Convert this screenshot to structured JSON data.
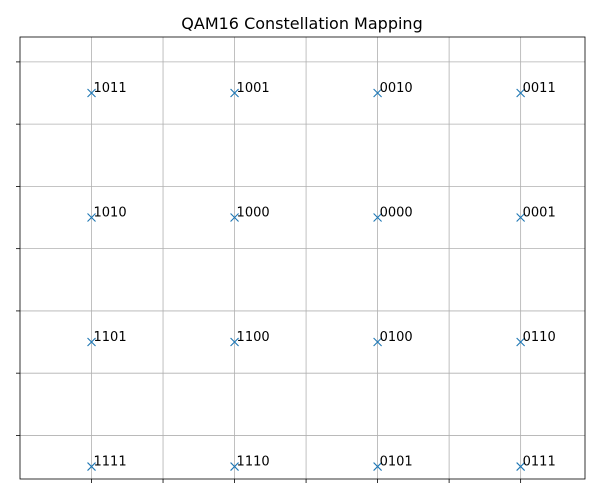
{
  "chart_data": {
    "type": "scatter",
    "title": "QAM16 Constellation Mapping",
    "xlabel": "",
    "ylabel": "",
    "marker": "x",
    "marker_color": "#1f77b4",
    "grid": true,
    "xlim": [
      -4.0,
      3.9
    ],
    "ylim": [
      -3.2,
      3.9
    ],
    "tick_labels_visible": false,
    "points": [
      {
        "x": -3,
        "y": 3,
        "label": "1011"
      },
      {
        "x": -1,
        "y": 3,
        "label": "1001"
      },
      {
        "x": 1,
        "y": 3,
        "label": "0010"
      },
      {
        "x": 3,
        "y": 3,
        "label": "0011"
      },
      {
        "x": -3,
        "y": 1,
        "label": "1010"
      },
      {
        "x": -1,
        "y": 1,
        "label": "1000"
      },
      {
        "x": 1,
        "y": 1,
        "label": "0000"
      },
      {
        "x": 3,
        "y": 1,
        "label": "0001"
      },
      {
        "x": -3,
        "y": -1,
        "label": "1101"
      },
      {
        "x": -1,
        "y": -1,
        "label": "1100"
      },
      {
        "x": 1,
        "y": -1,
        "label": "0100"
      },
      {
        "x": 3,
        "y": -1,
        "label": "0110"
      },
      {
        "x": -3,
        "y": -3,
        "label": "1111"
      },
      {
        "x": -1,
        "y": -3,
        "label": "1110"
      },
      {
        "x": 1,
        "y": -3,
        "label": "0101"
      },
      {
        "x": 3,
        "y": -3,
        "label": "0111"
      }
    ]
  }
}
